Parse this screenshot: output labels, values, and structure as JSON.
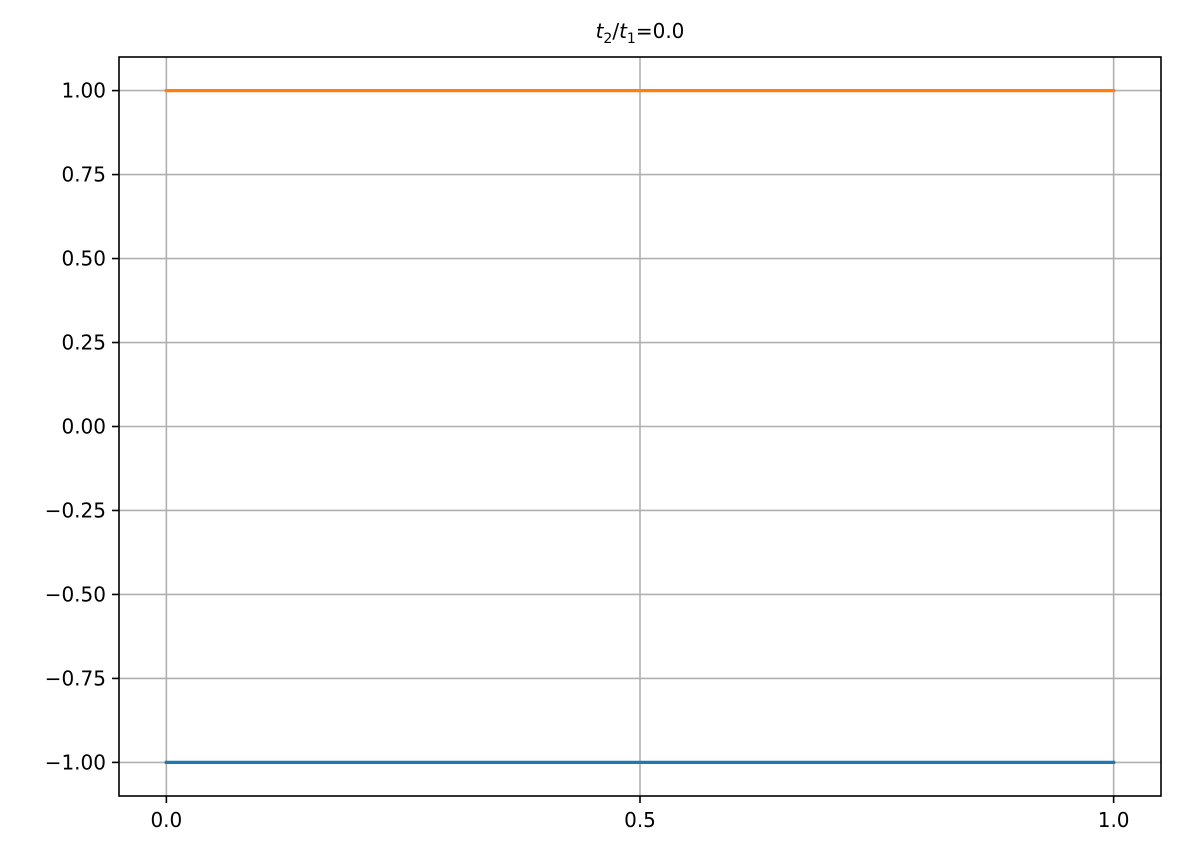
{
  "chart_data": {
    "type": "line",
    "title": {
      "var_a": "t",
      "sub_a": "2",
      "slash": "/",
      "var_b": "t",
      "sub_b": "1",
      "rest": "=0.0"
    },
    "xlabel": "",
    "ylabel": "",
    "xlim": [
      -0.05,
      1.05
    ],
    "ylim": [
      -1.1,
      1.1
    ],
    "x_ticks": [
      0.0,
      0.5,
      1.0
    ],
    "x_tick_labels": [
      "0.0",
      "0.5",
      "1.0"
    ],
    "y_ticks": [
      1.0,
      0.75,
      0.5,
      0.25,
      0.0,
      -0.25,
      -0.5,
      -0.75,
      -1.0
    ],
    "y_tick_labels": [
      "1.00",
      "0.75",
      "0.50",
      "0.25",
      "0.00",
      "−0.25",
      "−0.50",
      "−0.75",
      "−1.00"
    ],
    "grid": true,
    "legend": false,
    "series": [
      {
        "color": "#1f77b4",
        "x": [
          0.0,
          1.0
        ],
        "y": [
          -1.0,
          -1.0
        ]
      },
      {
        "color": "#ff7f0e",
        "x": [
          0.0,
          1.0
        ],
        "y": [
          1.0,
          1.0
        ]
      }
    ]
  }
}
